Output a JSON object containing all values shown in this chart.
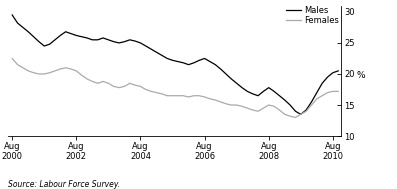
{
  "title": "",
  "ylabel": "%",
  "source": "Source: Labour Force Survey.",
  "ylim": [
    10,
    31
  ],
  "yticks": [
    10,
    15,
    20,
    25,
    30
  ],
  "xlim_start": 2000.45,
  "xlim_end": 2010.85,
  "xtick_years": [
    2000,
    2002,
    2004,
    2006,
    2008,
    2010
  ],
  "legend_labels": [
    "Males",
    "Females"
  ],
  "males_color": "#000000",
  "females_color": "#aaaaaa",
  "line_width": 0.9,
  "males_data": [
    [
      2000.583,
      29.5
    ],
    [
      2000.75,
      28.2
    ],
    [
      2000.917,
      27.5
    ],
    [
      2001.083,
      26.8
    ],
    [
      2001.25,
      26.0
    ],
    [
      2001.417,
      25.2
    ],
    [
      2001.583,
      24.5
    ],
    [
      2001.75,
      24.8
    ],
    [
      2001.917,
      25.5
    ],
    [
      2002.083,
      26.2
    ],
    [
      2002.25,
      26.8
    ],
    [
      2002.417,
      26.5
    ],
    [
      2002.583,
      26.2
    ],
    [
      2002.75,
      26.0
    ],
    [
      2002.917,
      25.8
    ],
    [
      2003.083,
      25.5
    ],
    [
      2003.25,
      25.5
    ],
    [
      2003.417,
      25.8
    ],
    [
      2003.583,
      25.5
    ],
    [
      2003.75,
      25.2
    ],
    [
      2003.917,
      25.0
    ],
    [
      2004.083,
      25.2
    ],
    [
      2004.25,
      25.5
    ],
    [
      2004.417,
      25.3
    ],
    [
      2004.583,
      25.0
    ],
    [
      2004.75,
      24.5
    ],
    [
      2004.917,
      24.0
    ],
    [
      2005.083,
      23.5
    ],
    [
      2005.25,
      23.0
    ],
    [
      2005.417,
      22.5
    ],
    [
      2005.583,
      22.2
    ],
    [
      2005.75,
      22.0
    ],
    [
      2005.917,
      21.8
    ],
    [
      2006.083,
      21.5
    ],
    [
      2006.25,
      21.8
    ],
    [
      2006.417,
      22.2
    ],
    [
      2006.583,
      22.5
    ],
    [
      2006.75,
      22.0
    ],
    [
      2006.917,
      21.5
    ],
    [
      2007.083,
      20.8
    ],
    [
      2007.25,
      20.0
    ],
    [
      2007.417,
      19.2
    ],
    [
      2007.583,
      18.5
    ],
    [
      2007.75,
      17.8
    ],
    [
      2007.917,
      17.2
    ],
    [
      2008.083,
      16.8
    ],
    [
      2008.25,
      16.5
    ],
    [
      2008.417,
      17.2
    ],
    [
      2008.583,
      17.8
    ],
    [
      2008.75,
      17.2
    ],
    [
      2008.917,
      16.5
    ],
    [
      2009.083,
      15.8
    ],
    [
      2009.25,
      15.0
    ],
    [
      2009.417,
      14.0
    ],
    [
      2009.583,
      13.5
    ],
    [
      2009.75,
      14.2
    ],
    [
      2009.917,
      15.5
    ],
    [
      2010.083,
      17.0
    ],
    [
      2010.25,
      18.5
    ],
    [
      2010.417,
      19.5
    ],
    [
      2010.583,
      20.2
    ],
    [
      2010.75,
      20.5
    ]
  ],
  "females_data": [
    [
      2000.583,
      22.5
    ],
    [
      2000.75,
      21.5
    ],
    [
      2000.917,
      21.0
    ],
    [
      2001.083,
      20.5
    ],
    [
      2001.25,
      20.2
    ],
    [
      2001.417,
      20.0
    ],
    [
      2001.583,
      20.0
    ],
    [
      2001.75,
      20.2
    ],
    [
      2001.917,
      20.5
    ],
    [
      2002.083,
      20.8
    ],
    [
      2002.25,
      21.0
    ],
    [
      2002.417,
      20.8
    ],
    [
      2002.583,
      20.5
    ],
    [
      2002.75,
      19.8
    ],
    [
      2002.917,
      19.2
    ],
    [
      2003.083,
      18.8
    ],
    [
      2003.25,
      18.5
    ],
    [
      2003.417,
      18.8
    ],
    [
      2003.583,
      18.5
    ],
    [
      2003.75,
      18.0
    ],
    [
      2003.917,
      17.8
    ],
    [
      2004.083,
      18.0
    ],
    [
      2004.25,
      18.5
    ],
    [
      2004.417,
      18.2
    ],
    [
      2004.583,
      18.0
    ],
    [
      2004.75,
      17.5
    ],
    [
      2004.917,
      17.2
    ],
    [
      2005.083,
      17.0
    ],
    [
      2005.25,
      16.8
    ],
    [
      2005.417,
      16.5
    ],
    [
      2005.583,
      16.5
    ],
    [
      2005.75,
      16.5
    ],
    [
      2005.917,
      16.5
    ],
    [
      2006.083,
      16.3
    ],
    [
      2006.25,
      16.5
    ],
    [
      2006.417,
      16.5
    ],
    [
      2006.583,
      16.3
    ],
    [
      2006.75,
      16.0
    ],
    [
      2006.917,
      15.8
    ],
    [
      2007.083,
      15.5
    ],
    [
      2007.25,
      15.2
    ],
    [
      2007.417,
      15.0
    ],
    [
      2007.583,
      15.0
    ],
    [
      2007.75,
      14.8
    ],
    [
      2007.917,
      14.5
    ],
    [
      2008.083,
      14.2
    ],
    [
      2008.25,
      14.0
    ],
    [
      2008.417,
      14.5
    ],
    [
      2008.583,
      15.0
    ],
    [
      2008.75,
      14.8
    ],
    [
      2008.917,
      14.2
    ],
    [
      2009.083,
      13.5
    ],
    [
      2009.25,
      13.2
    ],
    [
      2009.417,
      13.0
    ],
    [
      2009.583,
      13.5
    ],
    [
      2009.75,
      14.0
    ],
    [
      2009.917,
      15.0
    ],
    [
      2010.083,
      16.0
    ],
    [
      2010.25,
      16.5
    ],
    [
      2010.417,
      17.0
    ],
    [
      2010.583,
      17.2
    ],
    [
      2010.75,
      17.2
    ]
  ]
}
